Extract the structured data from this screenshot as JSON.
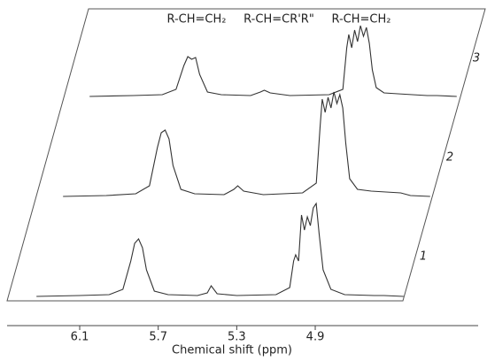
{
  "chart_data": {
    "type": "line",
    "annotations": [
      "R-CH=CH₂",
      "R-CH=CR'R\"",
      "R-CH=CH₂"
    ],
    "xlabel": "Chemical shift (ppm)",
    "xlim": [
      6.47,
      4.07
    ],
    "xticks": [
      6.1,
      5.7,
      5.3,
      4.9
    ],
    "ylim": [
      0,
      110
    ],
    "x": [
      6.32,
      6.1,
      5.95,
      5.88,
      5.84,
      5.82,
      5.8,
      5.78,
      5.76,
      5.72,
      5.65,
      5.5,
      5.45,
      5.43,
      5.4,
      5.3,
      5.1,
      5.03,
      5.01,
      5.0,
      4.985,
      4.97,
      4.955,
      4.94,
      4.925,
      4.91,
      4.895,
      4.88,
      4.86,
      4.82,
      4.75,
      4.6,
      4.55,
      4.45
    ],
    "series": [
      {
        "name": "1",
        "color": "#333333",
        "values": [
          0,
          1,
          2,
          8,
          40,
          60,
          65,
          55,
          30,
          6,
          2,
          1,
          4,
          12,
          3,
          1,
          2,
          10,
          40,
          47,
          40,
          92,
          75,
          90,
          80,
          100,
          105,
          70,
          30,
          8,
          2,
          1,
          1,
          0
        ]
      },
      {
        "name": "2",
        "color": "#333333",
        "values": [
          0,
          1,
          3,
          12,
          55,
          72,
          75,
          65,
          35,
          8,
          3,
          2,
          8,
          12,
          6,
          2,
          4,
          15,
          80,
          110,
          95,
          112,
          100,
          118,
          105,
          115,
          100,
          60,
          20,
          8,
          6,
          4,
          1,
          0
        ]
      },
      {
        "name": "3",
        "color": "#333333",
        "values": [
          0,
          1,
          2,
          8,
          35,
          45,
          42,
          44,
          25,
          5,
          2,
          1,
          5,
          7,
          4,
          1,
          2,
          8,
          55,
          70,
          55,
          75,
          62,
          80,
          68,
          78,
          60,
          30,
          10,
          4,
          3,
          1,
          1,
          0
        ]
      }
    ]
  }
}
